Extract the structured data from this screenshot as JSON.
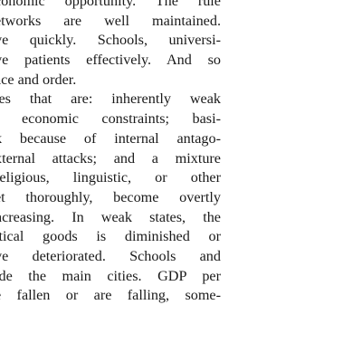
{
  "document": {
    "lines": [
      {
        "text": "conomic opportunity. The rule",
        "justify": true
      },
      {
        "text": "etworks are well maintained.",
        "justify": true
      },
      {
        "text": "ve quickly. Schools, universi-",
        "justify": true
      },
      {
        "text": "ve patients effectively. And so",
        "justify": true
      },
      {
        "text": "ace and order.",
        "justify": false
      },
      {
        "text": "tes that are: inherently weak",
        "justify": true
      },
      {
        "text": "l economic constraints; basi-",
        "justify": true
      },
      {
        "text": "k because of internal antago-",
        "justify": true
      },
      {
        "text": "xternal attacks; and a mixture",
        "justify": true
      },
      {
        "text": "religious, linguistic, or other",
        "justify": true
      },
      {
        "text": "et thoroughly, become overtly",
        "justify": true
      },
      {
        "text": "ncreasing. In weak states, the",
        "justify": true
      },
      {
        "text": "itical goods is diminished or",
        "justify": true
      },
      {
        "text": "ve deteriorated. Schools and",
        "justify": true
      },
      {
        "text": "ide the main cities. GDP per",
        "justify": true
      },
      {
        "text": "e fallen or are falling, some-",
        "justify": true
      }
    ]
  }
}
